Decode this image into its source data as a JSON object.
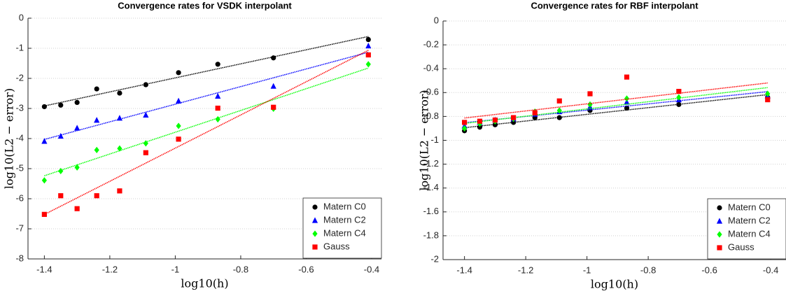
{
  "chart_data": [
    {
      "type": "scatter",
      "title": "Convergence rates for VSDK interpolant",
      "x_label": "log10(h)",
      "y_label": "log10(L2 − error)",
      "x": [
        -1.4,
        -1.35,
        -1.3,
        -1.24,
        -1.17,
        -1.09,
        -0.99,
        -0.87,
        -0.7,
        -0.41
      ],
      "series": [
        {
          "name": "Matern C0",
          "color": "#000000",
          "marker": "circle",
          "values": [
            -2.94,
            -2.89,
            -2.8,
            -2.35,
            -2.49,
            -2.21,
            -1.81,
            -1.53,
            -1.32,
            -0.71
          ]
        },
        {
          "name": "Matern C2",
          "color": "#0000ff",
          "marker": "triangle",
          "values": [
            -4.09,
            -3.92,
            -3.65,
            -3.39,
            -3.32,
            -3.22,
            -2.75,
            -2.59,
            -2.26,
            -0.92
          ]
        },
        {
          "name": "Matern C4",
          "color": "#00ff00",
          "marker": "diamond",
          "values": [
            -5.39,
            -5.08,
            -4.96,
            -4.38,
            -4.33,
            -4.16,
            -3.58,
            -3.36,
            -3.01,
            -1.53
          ]
        },
        {
          "name": "Gauss",
          "color": "#ff0000",
          "marker": "square",
          "values": [
            -6.52,
            -5.9,
            -6.33,
            -5.9,
            -5.74,
            -4.47,
            -4.02,
            -2.99,
            -2.96,
            -1.22
          ]
        }
      ],
      "trend_lines": true,
      "xlim": [
        -1.45,
        -0.37
      ],
      "ylim": [
        -8,
        0
      ],
      "xticks": [
        -1.4,
        -1.2,
        -1,
        -0.8,
        -0.6,
        -0.4
      ],
      "yticks": [
        0,
        -1,
        -2,
        -3,
        -4,
        -5,
        -6,
        -7,
        -8
      ],
      "grid": true,
      "legend": "lower right"
    },
    {
      "type": "scatter",
      "title": "Convergence rates for RBF interpolant",
      "x_label": "log10(h)",
      "y_label": "log10(L2 − error)",
      "x": [
        -1.4,
        -1.35,
        -1.3,
        -1.24,
        -1.17,
        -1.09,
        -0.99,
        -0.87,
        -0.7,
        -0.41
      ],
      "series": [
        {
          "name": "Matern C0",
          "color": "#000000",
          "marker": "circle",
          "values": [
            -0.92,
            -0.89,
            -0.87,
            -0.85,
            -0.81,
            -0.81,
            -0.75,
            -0.73,
            -0.7,
            -0.64
          ]
        },
        {
          "name": "Matern C2",
          "color": "#0000ff",
          "marker": "triangle",
          "values": [
            -0.88,
            -0.85,
            -0.83,
            -0.82,
            -0.78,
            -0.76,
            -0.72,
            -0.68,
            -0.66,
            -0.63
          ]
        },
        {
          "name": "Matern C4",
          "color": "#00ff00",
          "marker": "diamond",
          "values": [
            -0.9,
            -0.86,
            -0.84,
            -0.82,
            -0.76,
            -0.75,
            -0.7,
            -0.65,
            -0.64,
            -0.61
          ]
        },
        {
          "name": "Gauss",
          "color": "#ff0000",
          "marker": "square",
          "values": [
            -0.85,
            -0.84,
            -0.83,
            -0.81,
            -0.77,
            -0.67,
            -0.61,
            -0.47,
            -0.59,
            -0.66
          ]
        }
      ],
      "trend_lines": true,
      "xlim": [
        -1.47,
        -0.35
      ],
      "ylim": [
        -2,
        0
      ],
      "xticks": [
        -1.4,
        -1.2,
        -1,
        -0.8,
        -0.6,
        -0.4
      ],
      "yticks": [
        0,
        -0.2,
        -0.4,
        -0.6,
        -0.8,
        -1,
        -1.2,
        -1.4,
        -1.6,
        -1.8,
        -2
      ],
      "grid": true,
      "legend": "lower right"
    }
  ]
}
